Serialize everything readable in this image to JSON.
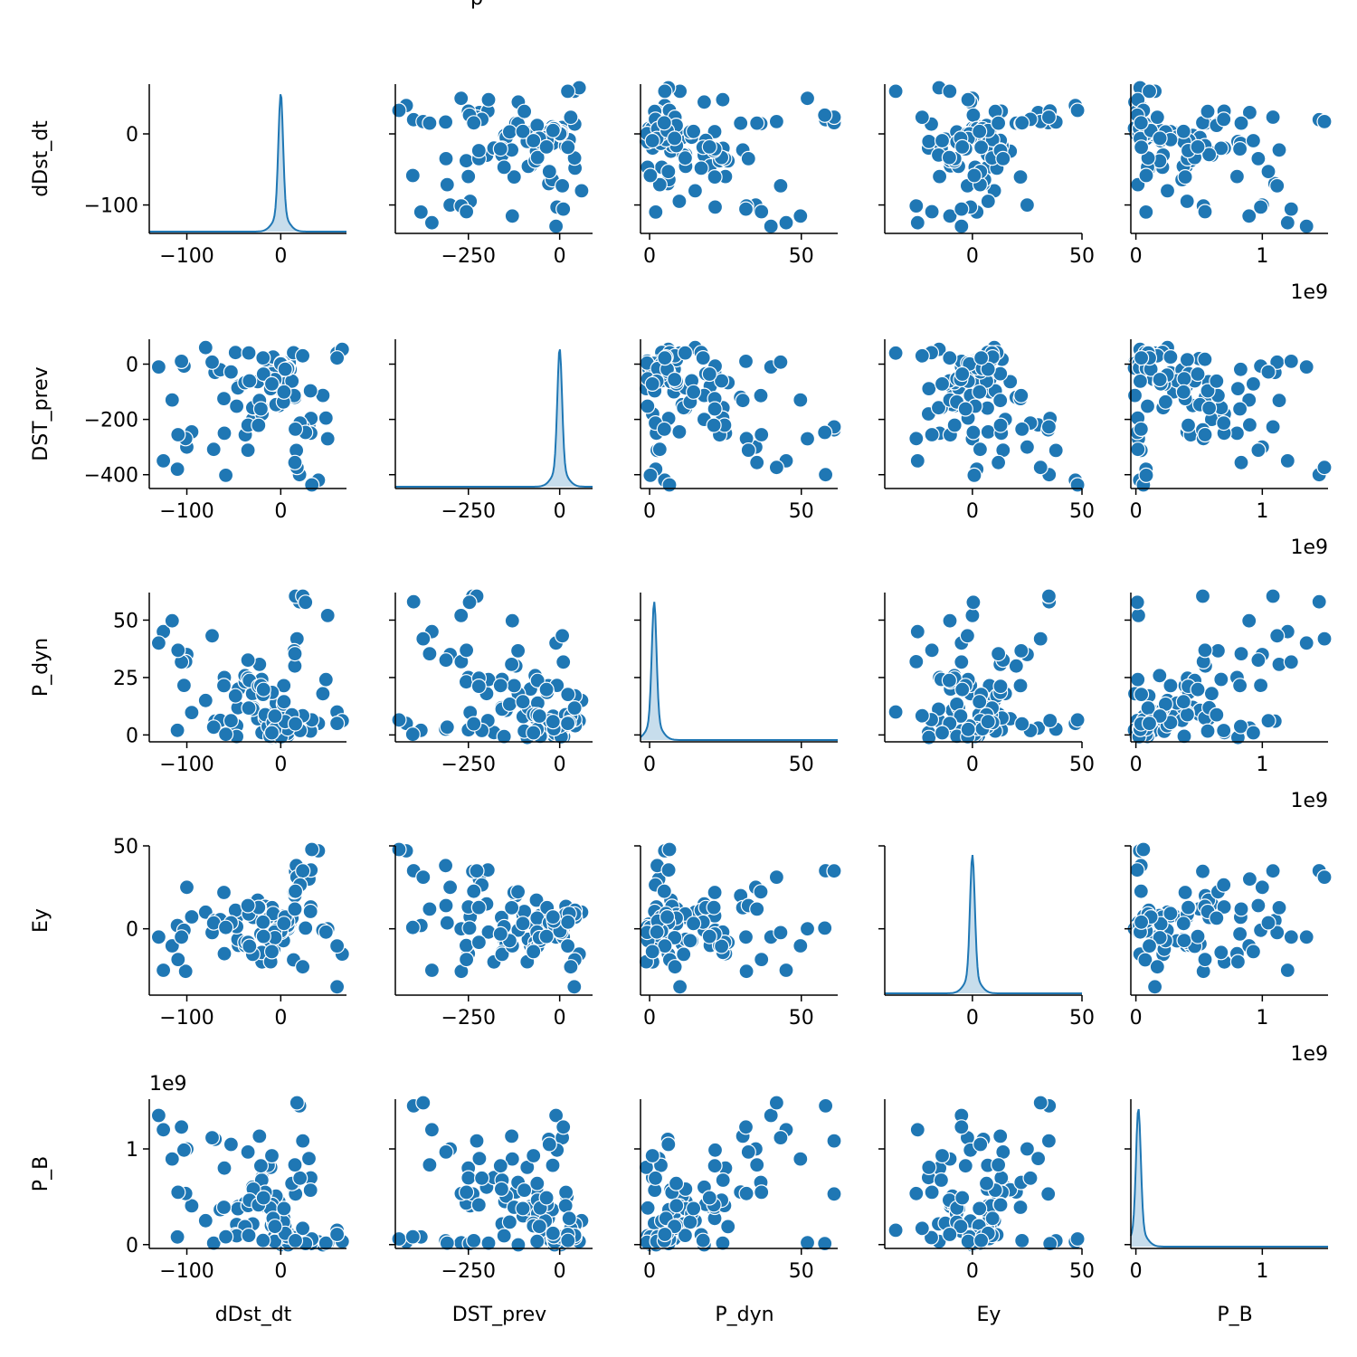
{
  "title_fragment": "p",
  "chart_data": {
    "type": "pairplot",
    "variables": [
      "dDst_dt",
      "DST_prev",
      "P_dyn",
      "Ey",
      "P_B"
    ],
    "diagonal": "kde",
    "offdiagonal": "scatter",
    "marker_color": "#1f77b4",
    "axes": {
      "dDst_dt": {
        "range": [
          -140,
          70
        ],
        "ticks": [
          -100,
          0
        ],
        "tick_labels": [
          "−100",
          "0"
        ]
      },
      "DST_prev": {
        "range": [
          -450,
          90
        ],
        "ticks": [
          -400,
          -200,
          0
        ],
        "tick_labels": [
          "−400",
          "−200",
          "0"
        ],
        "x_ticks": [
          -250,
          0
        ],
        "x_tick_labels": [
          "−250",
          "0"
        ]
      },
      "P_dyn": {
        "range": [
          -3,
          62
        ],
        "ticks": [
          0,
          25,
          50
        ],
        "tick_labels": [
          "0",
          "25",
          "50"
        ],
        "x_ticks": [
          0,
          50
        ],
        "x_tick_labels": [
          "0",
          "50"
        ]
      },
      "Ey": {
        "range": [
          -40,
          50
        ],
        "ticks": [
          0,
          50
        ],
        "tick_labels": [
          "0",
          "50"
        ]
      },
      "P_B": {
        "range": [
          -0.04,
          1.52
        ],
        "ticks": [
          0,
          1
        ],
        "tick_labels": [
          "0",
          "1"
        ],
        "offset_text": "1e9"
      }
    },
    "anchor_points": {
      "dDst_dt": [
        0,
        5,
        -5,
        10,
        -10,
        2,
        -2,
        -30,
        -60,
        -100,
        -125,
        20,
        40,
        60,
        -80,
        -45,
        15,
        -20,
        30,
        -70,
        -130,
        50,
        -110,
        -15
      ],
      "DST_prev": [
        0,
        -5,
        5,
        -20,
        -60,
        -100,
        -150,
        -200,
        -250,
        -300,
        -350,
        -400,
        -420,
        40,
        60,
        -80,
        -120,
        -180,
        -220,
        -30,
        -10,
        -270,
        -380,
        20
      ],
      "P_dyn": [
        1,
        2,
        3,
        2,
        4,
        8,
        12,
        18,
        25,
        35,
        45,
        58,
        5,
        10,
        15,
        20,
        30,
        1,
        3,
        6,
        40,
        52,
        2,
        9
      ],
      "Ey": [
        0,
        1,
        -1,
        3,
        -3,
        8,
        -8,
        15,
        -15,
        25,
        -25,
        35,
        47,
        -35,
        10,
        -10,
        20,
        -20,
        30,
        5,
        -5,
        0,
        2,
        12
      ],
      "P_B": [
        0.01,
        0.02,
        0.05,
        0.1,
        0.2,
        0.3,
        0.45,
        0.6,
        0.8,
        1.0,
        1.2,
        1.45,
        0.03,
        0.15,
        0.25,
        0.4,
        0.55,
        0.7,
        0.9,
        1.1,
        1.35,
        0.02,
        0.08,
        0.5
      ]
    }
  }
}
